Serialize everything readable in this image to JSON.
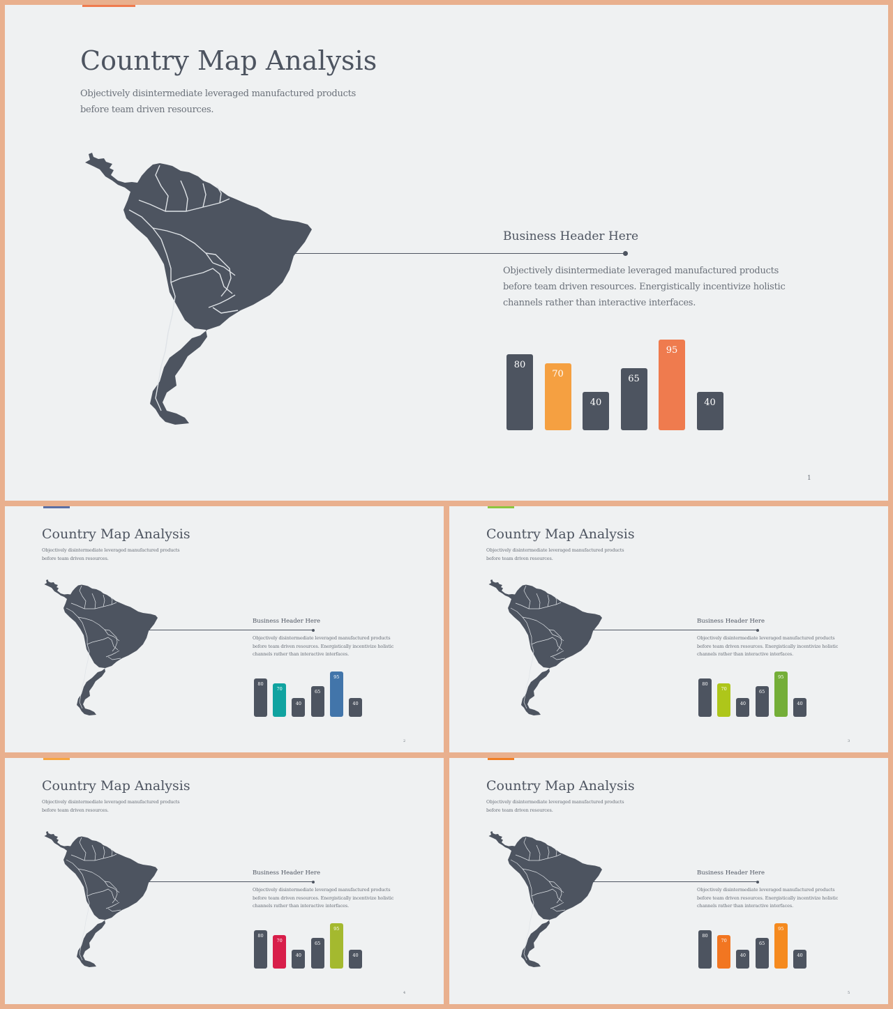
{
  "slides": [
    {
      "title": "Country Map Analysis",
      "subtitle": "Objectively disintermediate leveraged manufactured products before team driven resources.",
      "business_header": "Business Header Here",
      "body": "Objectively disintermediate leveraged manufactured products before team driven resources. Energistically incentivize holistic channels rather than interactive interfaces.",
      "page_number": "1",
      "accent_color": "#ef7b4e",
      "bars": [
        {
          "value": 80,
          "label": "80",
          "color": "#4d5460"
        },
        {
          "value": 70,
          "label": "70",
          "color": "#f5a041"
        },
        {
          "value": 40,
          "label": "40",
          "color": "#4d5460"
        },
        {
          "value": 65,
          "label": "65",
          "color": "#4d5460"
        },
        {
          "value": 95,
          "label": "95",
          "color": "#ef7b4e"
        },
        {
          "value": 40,
          "label": "40",
          "color": "#4d5460"
        }
      ]
    },
    {
      "title": "Country Map Analysis",
      "subtitle": "Objectively disintermediate leveraged manufactured products before team driven resources.",
      "business_header": "Business Header Here",
      "body": "Objectively disintermediate leveraged manufactured products before team driven resources. Energistically incentivize holistic channels rather than interactive interfaces.",
      "page_number": "2",
      "accent_color": "#5a6fa6",
      "bars": [
        {
          "value": 80,
          "label": "80",
          "color": "#4d5460"
        },
        {
          "value": 70,
          "label": "70",
          "color": "#10a3a0"
        },
        {
          "value": 40,
          "label": "40",
          "color": "#4d5460"
        },
        {
          "value": 65,
          "label": "65",
          "color": "#4d5460"
        },
        {
          "value": 95,
          "label": "95",
          "color": "#4275aa"
        },
        {
          "value": 40,
          "label": "40",
          "color": "#4d5460"
        }
      ]
    },
    {
      "title": "Country Map Analysis",
      "subtitle": "Objectively disintermediate leveraged manufactured products before team driven resources.",
      "business_header": "Business Header Here",
      "body": "Objectively disintermediate leveraged manufactured products before team driven resources. Energistically incentivize holistic channels rather than interactive interfaces.",
      "page_number": "3",
      "accent_color": "#8cc63f",
      "bars": [
        {
          "value": 80,
          "label": "80",
          "color": "#4d5460"
        },
        {
          "value": 70,
          "label": "70",
          "color": "#aec61a"
        },
        {
          "value": 40,
          "label": "40",
          "color": "#4d5460"
        },
        {
          "value": 65,
          "label": "65",
          "color": "#4d5460"
        },
        {
          "value": 95,
          "label": "95",
          "color": "#74ae38"
        },
        {
          "value": 40,
          "label": "40",
          "color": "#4d5460"
        }
      ]
    },
    {
      "title": "Country Map Analysis",
      "subtitle": "Objectively disintermediate leveraged manufactured products before team driven resources.",
      "business_header": "Business Header Here",
      "body": "Objectively disintermediate leveraged manufactured products before team driven resources. Energistically incentivize holistic channels rather than interactive interfaces.",
      "page_number": "4",
      "accent_color": "#f7a540",
      "bars": [
        {
          "value": 80,
          "label": "80",
          "color": "#4d5460"
        },
        {
          "value": 70,
          "label": "70",
          "color": "#d81e4a"
        },
        {
          "value": 40,
          "label": "40",
          "color": "#4d5460"
        },
        {
          "value": 65,
          "label": "65",
          "color": "#4d5460"
        },
        {
          "value": 95,
          "label": "95",
          "color": "#a4b92f"
        },
        {
          "value": 40,
          "label": "40",
          "color": "#4d5460"
        }
      ]
    },
    {
      "title": "Country Map Analysis",
      "subtitle": "Objectively disintermediate leveraged manufactured products before team driven resources.",
      "business_header": "Business Header Here",
      "body": "Objectively disintermediate leveraged manufactured products before team driven resources. Energistically incentivize holistic channels rather than interactive interfaces.",
      "page_number": "5",
      "accent_color": "#f07d22",
      "bars": [
        {
          "value": 80,
          "label": "80",
          "color": "#4d5460"
        },
        {
          "value": 70,
          "label": "70",
          "color": "#f27621"
        },
        {
          "value": 40,
          "label": "40",
          "color": "#4d5460"
        },
        {
          "value": 65,
          "label": "65",
          "color": "#4d5460"
        },
        {
          "value": 95,
          "label": "95",
          "color": "#f58a1f"
        },
        {
          "value": 40,
          "label": "40",
          "color": "#4d5460"
        }
      ]
    }
  ]
}
